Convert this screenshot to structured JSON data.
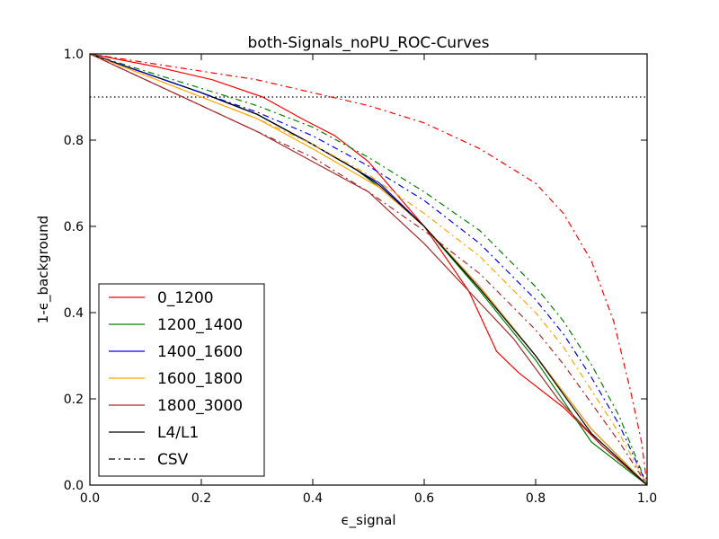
{
  "chart_data": {
    "type": "line",
    "title": "both-Signals_noPU_ROC-Curves",
    "xlabel": "ϵ_signal",
    "ylabel": "1-ϵ_background",
    "xlim": [
      0.0,
      1.0
    ],
    "ylim": [
      0.0,
      1.0
    ],
    "xticks": [
      "0.0",
      "0.2",
      "0.4",
      "0.6",
      "0.8",
      "1.0"
    ],
    "yticks": [
      "0.0",
      "0.2",
      "0.4",
      "0.6",
      "0.8",
      "1.0"
    ],
    "grid": false,
    "legend_position": "lower-left",
    "reference_line": {
      "y": 0.9,
      "style": "dotted",
      "color": "#000000"
    },
    "legend": [
      {
        "label": "0_1200",
        "color": "#ff0000",
        "style": "solid"
      },
      {
        "label": "1200_1400",
        "color": "#008000",
        "style": "solid"
      },
      {
        "label": "1400_1600",
        "color": "#0000ff",
        "style": "solid"
      },
      {
        "label": "1600_1800",
        "color": "#ffa500",
        "style": "solid"
      },
      {
        "label": "1800_3000",
        "color": "#a52a2a",
        "style": "solid"
      },
      {
        "label": "L4/L1",
        "color": "#000000",
        "style": "solid"
      },
      {
        "label": "CSV",
        "color": "#000000",
        "style": "dashdot"
      }
    ],
    "series": [
      {
        "group": "0_1200",
        "method": "L4/L1",
        "color": "#ff0000",
        "style": "solid",
        "x": [
          0,
          0.12,
          0.22,
          0.31,
          0.38,
          0.44,
          0.5,
          0.52,
          0.6,
          0.68,
          0.73,
          0.77,
          0.85,
          0.92,
          1.0
        ],
        "y": [
          1.0,
          0.97,
          0.94,
          0.9,
          0.85,
          0.81,
          0.75,
          0.72,
          0.6,
          0.45,
          0.31,
          0.26,
          0.18,
          0.09,
          0.0
        ]
      },
      {
        "group": "1200_1400",
        "method": "L4/L1",
        "color": "#008000",
        "style": "solid",
        "x": [
          0,
          0.1,
          0.2,
          0.3,
          0.4,
          0.48,
          0.52,
          0.6,
          0.7,
          0.8,
          0.9,
          1.0
        ],
        "y": [
          1.0,
          0.955,
          0.91,
          0.86,
          0.79,
          0.73,
          0.69,
          0.6,
          0.45,
          0.29,
          0.1,
          0.0
        ]
      },
      {
        "group": "1400_1600",
        "method": "L4/L1",
        "color": "#0000ff",
        "style": "solid",
        "x": [
          0,
          0.1,
          0.2,
          0.3,
          0.4,
          0.48,
          0.52,
          0.6,
          0.7,
          0.8,
          0.9,
          1.0
        ],
        "y": [
          1.0,
          0.955,
          0.91,
          0.86,
          0.79,
          0.73,
          0.7,
          0.6,
          0.46,
          0.3,
          0.13,
          0.0
        ]
      },
      {
        "group": "1600_1800",
        "method": "L4/L1",
        "color": "#ffa500",
        "style": "solid",
        "x": [
          0,
          0.1,
          0.2,
          0.3,
          0.4,
          0.48,
          0.52,
          0.6,
          0.7,
          0.8,
          0.9,
          1.0
        ],
        "y": [
          1.0,
          0.95,
          0.9,
          0.85,
          0.78,
          0.72,
          0.69,
          0.6,
          0.46,
          0.3,
          0.13,
          0.0
        ]
      },
      {
        "group": "1800_3000",
        "method": "L4/L1",
        "color": "#a52a2a",
        "style": "solid",
        "x": [
          0,
          0.1,
          0.2,
          0.3,
          0.4,
          0.5,
          0.6,
          0.68,
          0.76,
          0.84,
          0.92,
          1.0
        ],
        "y": [
          1.0,
          0.94,
          0.88,
          0.82,
          0.75,
          0.68,
          0.56,
          0.45,
          0.34,
          0.2,
          0.09,
          0.0
        ]
      },
      {
        "group": "1800_3000b",
        "method": "L4/L1",
        "color": "#000000",
        "style": "solid",
        "x": [
          0,
          0.1,
          0.2,
          0.3,
          0.4,
          0.48,
          0.52,
          0.6,
          0.7,
          0.8,
          0.9,
          1.0
        ],
        "y": [
          1.0,
          0.955,
          0.91,
          0.86,
          0.79,
          0.73,
          0.695,
          0.6,
          0.455,
          0.3,
          0.12,
          0.0
        ]
      },
      {
        "group": "0_1200",
        "method": "CSV",
        "color": "#ff0000",
        "style": "dashdot",
        "x": [
          0,
          0.1,
          0.2,
          0.3,
          0.4,
          0.5,
          0.6,
          0.7,
          0.8,
          0.85,
          0.9,
          0.94,
          0.97,
          0.99,
          1.0
        ],
        "y": [
          1.0,
          0.98,
          0.96,
          0.94,
          0.91,
          0.88,
          0.84,
          0.78,
          0.7,
          0.63,
          0.52,
          0.38,
          0.22,
          0.1,
          0.0
        ]
      },
      {
        "group": "1200_1400",
        "method": "CSV",
        "color": "#008000",
        "style": "dashdot",
        "x": [
          0,
          0.1,
          0.2,
          0.3,
          0.4,
          0.5,
          0.6,
          0.7,
          0.8,
          0.85,
          0.9,
          0.95,
          1.0
        ],
        "y": [
          1.0,
          0.96,
          0.92,
          0.88,
          0.83,
          0.76,
          0.68,
          0.59,
          0.46,
          0.38,
          0.28,
          0.16,
          0.0
        ]
      },
      {
        "group": "1400_1600",
        "method": "CSV",
        "color": "#0000ff",
        "style": "dashdot",
        "x": [
          0,
          0.1,
          0.2,
          0.3,
          0.4,
          0.5,
          0.6,
          0.7,
          0.8,
          0.85,
          0.9,
          0.95,
          1.0
        ],
        "y": [
          1.0,
          0.955,
          0.91,
          0.865,
          0.81,
          0.74,
          0.66,
          0.56,
          0.43,
          0.35,
          0.25,
          0.14,
          0.0
        ]
      },
      {
        "group": "1600_1800",
        "method": "CSV",
        "color": "#ffa500",
        "style": "dashdot",
        "x": [
          0,
          0.1,
          0.2,
          0.3,
          0.4,
          0.5,
          0.6,
          0.7,
          0.8,
          0.85,
          0.9,
          0.95,
          1.0
        ],
        "y": [
          1.0,
          0.95,
          0.9,
          0.85,
          0.79,
          0.72,
          0.63,
          0.53,
          0.4,
          0.32,
          0.22,
          0.12,
          0.0
        ]
      },
      {
        "group": "1800_3000",
        "method": "CSV",
        "color": "#a52a2a",
        "style": "dashdot",
        "x": [
          0,
          0.1,
          0.2,
          0.3,
          0.4,
          0.5,
          0.6,
          0.7,
          0.8,
          0.85,
          0.9,
          0.95,
          1.0
        ],
        "y": [
          1.0,
          0.94,
          0.88,
          0.82,
          0.76,
          0.68,
          0.59,
          0.49,
          0.36,
          0.28,
          0.19,
          0.1,
          0.0
        ]
      }
    ]
  }
}
